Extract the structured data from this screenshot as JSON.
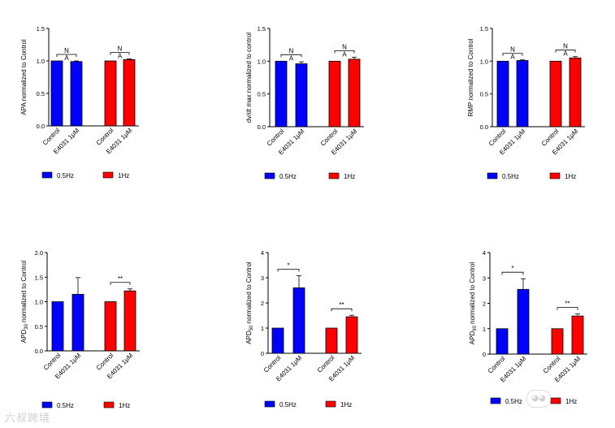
{
  "chart_data": [
    {
      "type": "bar",
      "ylabel": "APA normalized to Control",
      "ylim": [
        0,
        1.5
      ],
      "yticks": [
        "0.0",
        "0.5",
        "1.0",
        "1.5"
      ],
      "categories": [
        "Control",
        "E4031 1μM"
      ],
      "series": [
        {
          "name": "0.5Hz",
          "color": "#0000ff",
          "values": [
            1.0,
            0.99
          ],
          "errors": [
            0.0,
            0.01
          ]
        },
        {
          "name": "1Hz",
          "color": "#ff0000",
          "values": [
            1.0,
            1.02
          ],
          "errors": [
            0.0,
            0.01
          ]
        }
      ],
      "annotations": [
        "NA",
        "NA"
      ],
      "legend": [
        {
          "label": "0.5Hz",
          "color": "#0000ff"
        },
        {
          "label": "1Hz",
          "color": "#ff0000"
        }
      ]
    },
    {
      "type": "bar",
      "ylabel": "dv/dt max normalized to control",
      "ylim": [
        0,
        1.5
      ],
      "yticks": [
        "0.0",
        "0.5",
        "1.0",
        "1.5"
      ],
      "categories": [
        "Control",
        "E4031 1μM"
      ],
      "series": [
        {
          "name": "0.5Hz",
          "color": "#0000ff",
          "values": [
            1.0,
            0.96
          ],
          "errors": [
            0.0,
            0.03
          ]
        },
        {
          "name": "1Hz",
          "color": "#ff0000",
          "values": [
            1.0,
            1.03
          ],
          "errors": [
            0.0,
            0.03
          ]
        }
      ],
      "annotations": [
        "NA",
        "NA"
      ],
      "legend": [
        {
          "label": "0.5Hz",
          "color": "#0000ff"
        },
        {
          "label": "1Hz",
          "color": "#ff0000"
        }
      ]
    },
    {
      "type": "bar",
      "ylabel": "RMP normalized to Control",
      "ylim": [
        0,
        1.5
      ],
      "yticks": [
        "0.0",
        "0.5",
        "1.0",
        "1.5"
      ],
      "categories": [
        "Control",
        "E4031 1μM"
      ],
      "series": [
        {
          "name": "0.5Hz",
          "color": "#0000ff",
          "values": [
            1.0,
            1.01
          ],
          "errors": [
            0.0,
            0.01
          ]
        },
        {
          "name": "1Hz",
          "color": "#ff0000",
          "values": [
            1.0,
            1.05
          ],
          "errors": [
            0.0,
            0.02
          ]
        }
      ],
      "annotations": [
        "NA",
        "NA"
      ],
      "legend": [
        {
          "label": "0.5Hz",
          "color": "#0000ff"
        },
        {
          "label": "1Hz",
          "color": "#ff0000"
        }
      ]
    },
    {
      "type": "bar",
      "ylabel": "APD30 normalized to Control",
      "ylabel_main": "APD",
      "ylabel_sub": "30",
      "ylabel_rest": " normalized to Control",
      "ylim": [
        0,
        2.0
      ],
      "yticks": [
        "0.0",
        "0.5",
        "1.0",
        "1.5",
        "2.0"
      ],
      "categories": [
        "Control",
        "E4031 1μM"
      ],
      "series": [
        {
          "name": "0.5Hz",
          "color": "#0000ff",
          "values": [
            1.0,
            1.15
          ],
          "errors": [
            0.0,
            0.34
          ]
        },
        {
          "name": "1Hz",
          "color": "#ff0000",
          "values": [
            1.0,
            1.22
          ],
          "errors": [
            0.0,
            0.04
          ]
        }
      ],
      "annotations": [
        "",
        "**"
      ],
      "legend": [
        {
          "label": "0.5Hz",
          "color": "#0000ff"
        },
        {
          "label": "1Hz",
          "color": "#ff0000"
        }
      ]
    },
    {
      "type": "bar",
      "ylabel": "APD50 normalized to Control",
      "ylabel_main": "APD",
      "ylabel_sub": "50",
      "ylabel_rest": " normalized to Control",
      "ylim": [
        0,
        4
      ],
      "yticks": [
        "0",
        "1",
        "2",
        "3",
        "4"
      ],
      "categories": [
        "Control",
        "E4031 1μM"
      ],
      "series": [
        {
          "name": "0.5Hz",
          "color": "#0000ff",
          "values": [
            1.0,
            2.6
          ],
          "errors": [
            0.0,
            0.48
          ]
        },
        {
          "name": "1Hz",
          "color": "#ff0000",
          "values": [
            1.0,
            1.45
          ],
          "errors": [
            0.0,
            0.06
          ]
        }
      ],
      "annotations": [
        "*",
        "**"
      ],
      "legend": [
        {
          "label": "0.5Hz",
          "color": "#0000ff"
        },
        {
          "label": "1Hz",
          "color": "#ff0000"
        }
      ]
    },
    {
      "type": "bar",
      "ylabel": "APD90 normalized to Control",
      "ylabel_main": "APD",
      "ylabel_sub": "90",
      "ylabel_rest": " normalized to Control",
      "ylim": [
        0,
        4
      ],
      "yticks": [
        "0",
        "1",
        "2",
        "3",
        "4"
      ],
      "categories": [
        "Control",
        "E4031 1μM"
      ],
      "series": [
        {
          "name": "0.5Hz",
          "color": "#0000ff",
          "values": [
            1.0,
            2.55
          ],
          "errors": [
            0.0,
            0.42
          ]
        },
        {
          "name": "1Hz",
          "color": "#ff0000",
          "values": [
            1.0,
            1.5
          ],
          "errors": [
            0.0,
            0.08
          ]
        }
      ],
      "annotations": [
        "*",
        "**"
      ],
      "legend": [
        {
          "label": "0.5Hz",
          "color": "#0000ff"
        },
        {
          "label": "1Hz",
          "color": "#ff0000"
        }
      ]
    }
  ],
  "watermark": "六叔跨境",
  "watermark_icon": "wechat-icon"
}
